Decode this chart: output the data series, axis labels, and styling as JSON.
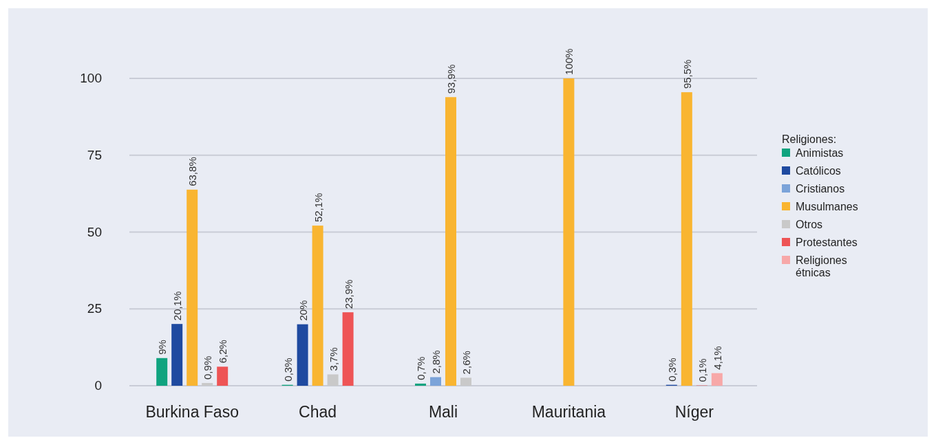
{
  "chart_data": {
    "type": "bar",
    "categories": [
      "Burkina Faso",
      "Chad",
      "Mali",
      "Mauritania",
      "Níger"
    ],
    "series": [
      {
        "name": "Animistas",
        "color": "#10a37f",
        "values": [
          9,
          0.3,
          0.7,
          null,
          null
        ],
        "value_labels": [
          "9%",
          "0,3%",
          "0,7%",
          null,
          null
        ]
      },
      {
        "name": "Católicos",
        "color": "#1f4aa0",
        "values": [
          20.1,
          20,
          null,
          null,
          0.3
        ],
        "value_labels": [
          "20,1%",
          "20%",
          null,
          null,
          "0,3%"
        ]
      },
      {
        "name": "Cristianos",
        "color": "#7ba3d9",
        "values": [
          null,
          null,
          2.8,
          null,
          null
        ],
        "value_labels": [
          null,
          null,
          "2,8%",
          null,
          null
        ]
      },
      {
        "name": "Musulmanes",
        "color": "#f9b531",
        "values": [
          63.8,
          52.1,
          93.9,
          100,
          95.5
        ],
        "value_labels": [
          "63,8%",
          "52,1%",
          "93,9%",
          "100%",
          "95,5%"
        ]
      },
      {
        "name": "Otros",
        "color": "#c9c9c9",
        "values": [
          0.9,
          3.7,
          2.6,
          null,
          null
        ],
        "value_labels": [
          "0,9%",
          "3,7%",
          "2,6%",
          null,
          null
        ]
      },
      {
        "name": "Protestantes",
        "color": "#ee5455",
        "values": [
          6.2,
          23.9,
          null,
          null,
          0.1
        ],
        "value_labels": [
          "6,2%",
          "23,9%",
          null,
          null,
          "0,1%"
        ]
      },
      {
        "name": "Religiones étnicas",
        "color": "#f7a8a8",
        "values": [
          null,
          null,
          null,
          null,
          4.1
        ],
        "value_labels": [
          null,
          null,
          null,
          null,
          "4,1%"
        ]
      }
    ],
    "ylim": [
      0,
      100
    ],
    "yticks": [
      0,
      25,
      50,
      75,
      100
    ],
    "grid": "y",
    "legend": "right",
    "legend_title": "Religiones:"
  }
}
